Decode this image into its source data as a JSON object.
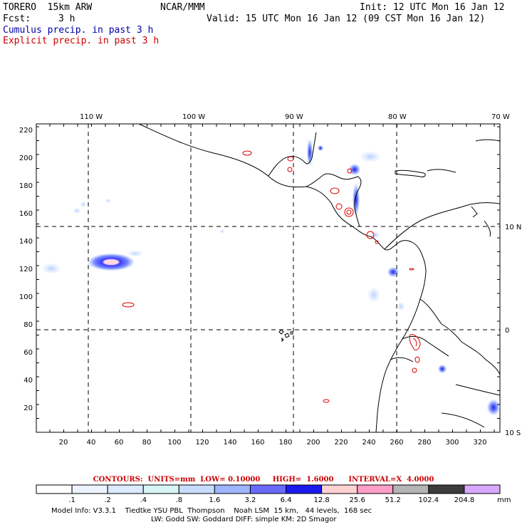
{
  "header": {
    "model": "TORERO  15km ARW",
    "org": "NCAR/MMM",
    "init": "Init: 12 UTC Mon 16 Jan 12",
    "fcst_label": "Fcst:",
    "fcst_value": "3 h",
    "valid": "Valid: 15 UTC Mon 16 Jan 12 (09 CST Mon 16 Jan 12)",
    "cumulus": "Cumulus precip. in past 3 h",
    "explicit": "Explicit precip. in past 3 h"
  },
  "map": {
    "top_lon_labels": [
      "110 W",
      "100 W",
      "90 W",
      "80 W",
      "70 W"
    ],
    "right_lat_labels": [
      "10 N",
      "0",
      "10 S"
    ],
    "left_y_ticks": [
      "220",
      "200",
      "180",
      "160",
      "140",
      "120",
      "100",
      "80",
      "60",
      "40",
      "20"
    ],
    "bottom_x_ticks": [
      "20",
      "40",
      "60",
      "80",
      "100",
      "120",
      "140",
      "160",
      "180",
      "200",
      "220",
      "240",
      "260",
      "280",
      "300",
      "320"
    ],
    "colors": {
      "coast": "#000000",
      "grid": "#000000",
      "contour": "#dd0000"
    }
  },
  "contours_line": {
    "label": "CONTOURS:",
    "units": "UNITS=mm",
    "low": "LOW= 0.10000",
    "high": "HIGH=  1.6000",
    "interval": "INTERVAL=X  4.0000"
  },
  "colorbar": {
    "labels": [
      ".1",
      ".2",
      ".4",
      ".8",
      "1.6",
      "3.2",
      "6.4",
      "12.8",
      "25.6",
      "51.2",
      "102.4",
      "204.8"
    ],
    "unit": "mm",
    "colors": [
      "#ffffff",
      "#eef4ff",
      "#dcebff",
      "#d8f4f4",
      "#c8dcff",
      "#9eb4ff",
      "#6a6aff",
      "#1a1aee",
      "#ffd2d2",
      "#ff9ec8",
      "#b4b4b4",
      "#3c3c3c",
      "#d8a8ff"
    ]
  },
  "footer": {
    "line1": "Model Info: V3.3.1    Tiedtke YSU PBL  Thompson    Noah LSM  15 km,   44 levels,  168 sec",
    "line2": "LW: Godd SW: Goddard DIFF: simple KM: 2D Smagor"
  }
}
